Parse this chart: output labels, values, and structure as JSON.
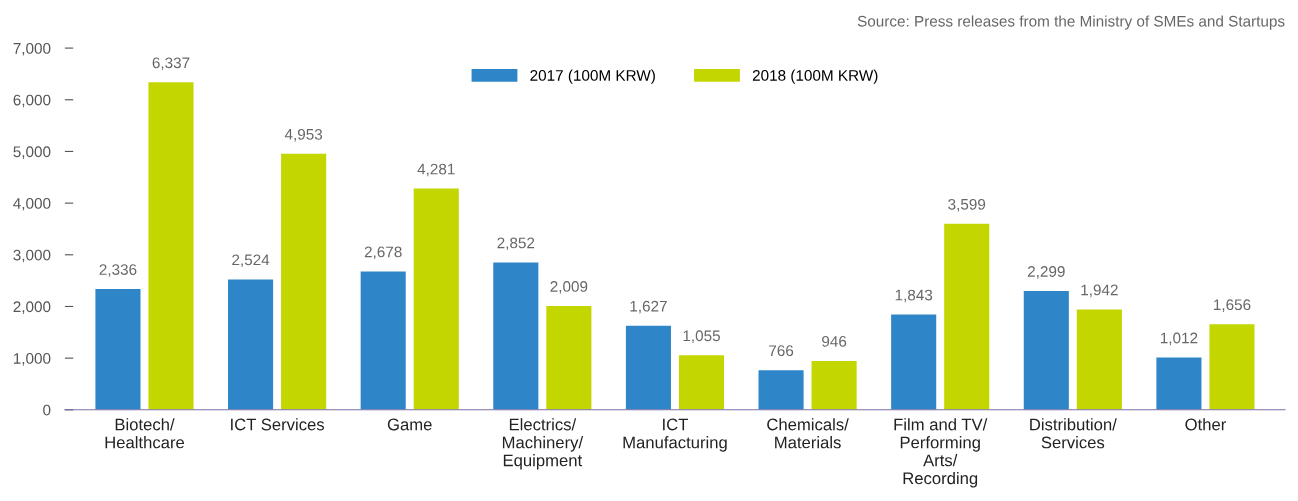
{
  "chart_data": {
    "type": "bar",
    "categories": [
      "Biotech/\nHealthcare",
      "ICT Services",
      "Game",
      "Electrics/\nMachinery/\nEquipment",
      "ICT\nManufacturing",
      "Chemicals/\nMaterials",
      "Film and TV/\nPerforming\nArts/\nRecording",
      "Distribution/\nServices",
      "Other"
    ],
    "series": [
      {
        "name": "2017 (100M KRW)",
        "color": "#2e86c8",
        "values": [
          2336,
          2524,
          2678,
          2852,
          1627,
          766,
          1843,
          2299,
          1012
        ],
        "value_labels": [
          "2,336",
          "2,524",
          "2,678",
          "2,852",
          "1,627",
          "766",
          "1,843",
          "2,299",
          "1,012"
        ]
      },
      {
        "name": "2018 (100M KRW)",
        "color": "#c4d600",
        "values": [
          6337,
          4953,
          4281,
          2009,
          1055,
          946,
          3599,
          1942,
          1656
        ],
        "value_labels": [
          "6,337",
          "4,953",
          "4,281",
          "2,009",
          "1,055",
          "946",
          "3,599",
          "1,942",
          "1,656"
        ]
      }
    ],
    "ylim": [
      0,
      7000
    ],
    "yticks": [
      {
        "value": 0,
        "label": "0"
      },
      {
        "value": 1000,
        "label": "1,000"
      },
      {
        "value": 2000,
        "label": "2,000"
      },
      {
        "value": 3000,
        "label": "3,000"
      },
      {
        "value": 4000,
        "label": "4,000"
      },
      {
        "value": 5000,
        "label": "5,000"
      },
      {
        "value": 6000,
        "label": "6,000"
      },
      {
        "value": 7000,
        "label": "7,000"
      }
    ],
    "grid": false,
    "legend": "top",
    "annotations": [
      "Source: Press releases from the Ministry of SMEs and Startups"
    ]
  }
}
